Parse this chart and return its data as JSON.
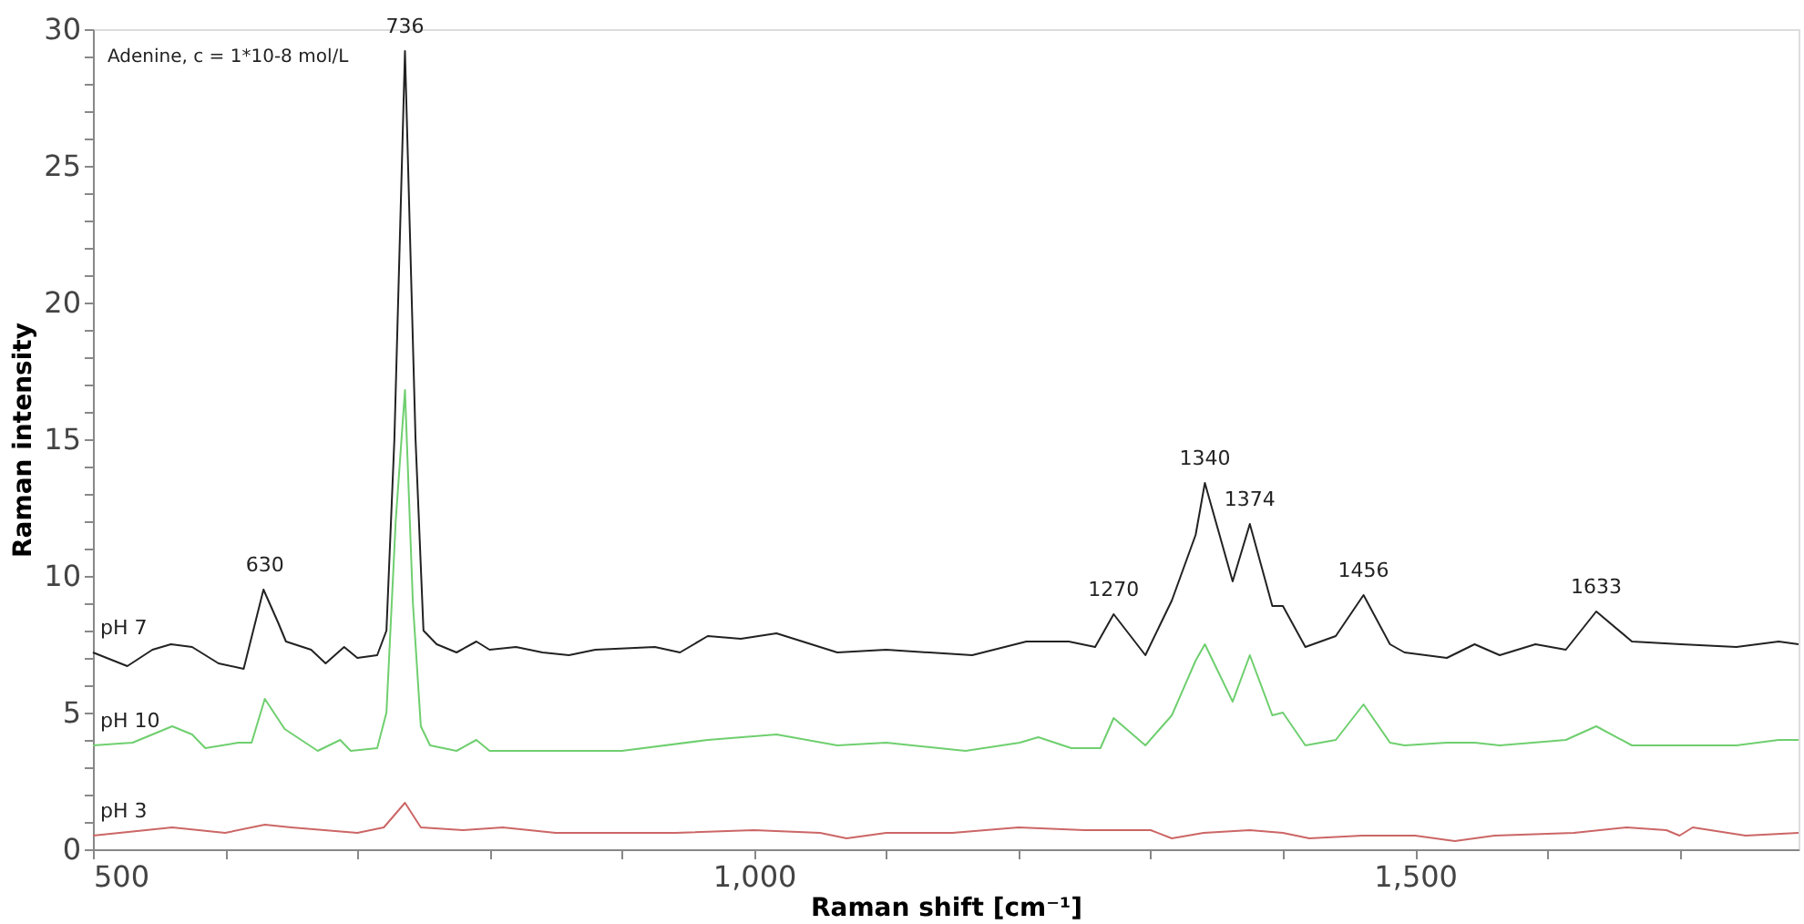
{
  "chart_data": {
    "type": "line",
    "xlabel": "Raman shift [cm⁻¹]",
    "ylabel": "Raman intensity",
    "xlim": [
      500,
      1790
    ],
    "ylim": [
      0,
      30
    ],
    "xticks": [
      500,
      {
        "value": 600,
        "label": null
      },
      {
        "value": 700,
        "label": null
      },
      {
        "value": 800,
        "label": null
      },
      {
        "value": 900,
        "label": null
      },
      {
        "value": 1000,
        "label": "1,000"
      },
      {
        "value": 1100,
        "label": null
      },
      {
        "value": 1200,
        "label": null
      },
      {
        "value": 1300,
        "label": null
      },
      {
        "value": 1400,
        "label": null
      },
      {
        "value": 1500,
        "label": "1,500"
      },
      {
        "value": 1600,
        "label": null
      },
      {
        "value": 1700,
        "label": null
      }
    ],
    "yticks": [
      0,
      {
        "value": 1,
        "label": null
      },
      {
        "value": 2,
        "label": null
      },
      {
        "value": 3,
        "label": null
      },
      {
        "value": 4,
        "label": null
      },
      5,
      {
        "value": 6,
        "label": null
      },
      {
        "value": 7,
        "label": null
      },
      {
        "value": 8,
        "label": null
      },
      {
        "value": 9,
        "label": null
      },
      10,
      {
        "value": 11,
        "label": null
      },
      {
        "value": 12,
        "label": null
      },
      {
        "value": 13,
        "label": null
      },
      {
        "value": 14,
        "label": null
      },
      15,
      {
        "value": 16,
        "label": null
      },
      {
        "value": 17,
        "label": null
      },
      {
        "value": 18,
        "label": null
      },
      {
        "value": 19,
        "label": null
      },
      20,
      {
        "value": 21,
        "label": null
      },
      {
        "value": 22,
        "label": null
      },
      {
        "value": 23,
        "label": null
      },
      {
        "value": 24,
        "label": null
      },
      25,
      {
        "value": 26,
        "label": null
      },
      {
        "value": 27,
        "label": null
      },
      {
        "value": 28,
        "label": null
      },
      {
        "value": 29,
        "label": null
      },
      30
    ],
    "line_style": "solid",
    "annotations": [
      "Adenine, c = 1*10-8 mol/L",
      {
        "text": "630",
        "x": 630,
        "y": 9.5
      },
      {
        "text": "736",
        "x": 736,
        "y": 29.2
      },
      {
        "text": "1270",
        "x": 1272,
        "y": 8.6
      },
      {
        "text": "1340",
        "x": 1341,
        "y": 13.4
      },
      {
        "text": "1374",
        "x": 1375,
        "y": 11.9
      },
      {
        "text": "1456",
        "x": 1461,
        "y": 9.3
      },
      {
        "text": "1633",
        "x": 1637,
        "y": 8.7
      }
    ],
    "series": [
      {
        "name": "pH 7",
        "color": "#222222",
        "x": [
          500,
          526,
          545,
          559,
          575,
          595,
          614,
          629,
          640,
          646,
          665,
          676,
          690,
          700,
          715,
          722,
          728,
          736,
          744,
          750,
          760,
          775,
          790,
          800,
          820,
          840,
          860,
          880,
          925,
          944,
          965,
          990,
          1017,
          1063,
          1100,
          1165,
          1206,
          1238,
          1258,
          1272,
          1296,
          1316,
          1334,
          1341,
          1362,
          1375,
          1392,
          1400,
          1417,
          1440,
          1461,
          1481,
          1492,
          1524,
          1545,
          1564,
          1591,
          1614,
          1637,
          1664,
          1701,
          1743,
          1775,
          1790
        ],
        "values": [
          7.2,
          6.7,
          7.3,
          7.5,
          7.4,
          6.8,
          6.6,
          9.5,
          8.3,
          7.6,
          7.3,
          6.8,
          7.4,
          7.0,
          7.1,
          8.0,
          15,
          29.2,
          15,
          8.0,
          7.5,
          7.2,
          7.6,
          7.3,
          7.4,
          7.2,
          7.1,
          7.3,
          7.4,
          7.2,
          7.8,
          7.7,
          7.9,
          7.2,
          7.3,
          7.1,
          7.6,
          7.6,
          7.4,
          8.6,
          7.1,
          9.1,
          11.5,
          13.4,
          9.8,
          11.9,
          8.9,
          8.9,
          7.4,
          7.8,
          9.3,
          7.5,
          7.2,
          7.0,
          7.5,
          7.1,
          7.5,
          7.3,
          8.7,
          7.6,
          7.5,
          7.4,
          7.6,
          7.5
        ]
      },
      {
        "name": "pH 10",
        "color": "#6fcf6f",
        "x": [
          500,
          530,
          545,
          560,
          575,
          585,
          610,
          620,
          630,
          645,
          670,
          687,
          695,
          715,
          722,
          729,
          736,
          742,
          748,
          755,
          775,
          790,
          800,
          850,
          900,
          965,
          1017,
          1063,
          1100,
          1160,
          1201,
          1215,
          1240,
          1262,
          1272,
          1296,
          1316,
          1334,
          1341,
          1362,
          1375,
          1392,
          1400,
          1417,
          1440,
          1461,
          1481,
          1492,
          1524,
          1545,
          1564,
          1614,
          1637,
          1664,
          1701,
          1743,
          1775,
          1790
        ],
        "values": [
          3.8,
          3.9,
          4.2,
          4.5,
          4.2,
          3.7,
          3.9,
          3.9,
          5.5,
          4.4,
          3.6,
          4.0,
          3.6,
          3.7,
          5.0,
          12,
          16.8,
          9,
          4.5,
          3.8,
          3.6,
          4.0,
          3.6,
          3.6,
          3.6,
          4.0,
          4.2,
          3.8,
          3.9,
          3.6,
          3.9,
          4.1,
          3.7,
          3.7,
          4.8,
          3.8,
          4.9,
          6.9,
          7.5,
          5.4,
          7.1,
          4.9,
          5.0,
          3.8,
          4.0,
          5.3,
          3.9,
          3.8,
          3.9,
          3.9,
          3.8,
          4.0,
          4.5,
          3.8,
          3.8,
          3.8,
          4.0,
          4.0
        ]
      },
      {
        "name": "pH 3",
        "color": "#cc6666",
        "x": [
          500,
          560,
          600,
          630,
          650,
          700,
          720,
          736,
          748,
          780,
          810,
          850,
          900,
          940,
          1000,
          1050,
          1070,
          1100,
          1150,
          1200,
          1250,
          1300,
          1316,
          1340,
          1375,
          1400,
          1420,
          1460,
          1500,
          1530,
          1560,
          1620,
          1660,
          1690,
          1700,
          1710,
          1750,
          1790
        ],
        "values": [
          0.5,
          0.8,
          0.6,
          0.9,
          0.8,
          0.6,
          0.8,
          1.7,
          0.8,
          0.7,
          0.8,
          0.6,
          0.6,
          0.6,
          0.7,
          0.6,
          0.4,
          0.6,
          0.6,
          0.8,
          0.7,
          0.7,
          0.4,
          0.6,
          0.7,
          0.6,
          0.4,
          0.5,
          0.5,
          0.3,
          0.5,
          0.6,
          0.8,
          0.7,
          0.5,
          0.8,
          0.5,
          0.6
        ]
      }
    ]
  }
}
